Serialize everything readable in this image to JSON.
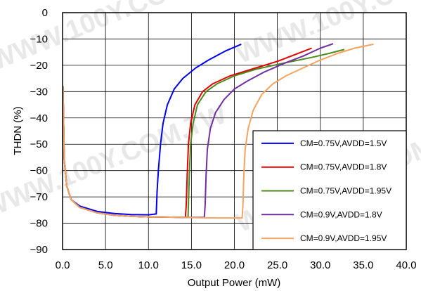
{
  "watermark": "WWW.100Y.COM.TW",
  "chart_data": {
    "type": "line",
    "title": "",
    "xlabel": "Output Power (mW)",
    "ylabel": "THDN (%)",
    "xlim": [
      0,
      40
    ],
    "ylim": [
      -90,
      0
    ],
    "x_ticks": [
      "0.0",
      "5.0",
      "10.0",
      "15.0",
      "20.0",
      "25.0",
      "30.0",
      "35.0",
      "40.0"
    ],
    "y_ticks": [
      "0",
      "−10",
      "−20",
      "−30",
      "−40",
      "−50",
      "−60",
      "−70",
      "−80",
      "−90"
    ],
    "grid": true,
    "legend_position": "bottom-right",
    "series": [
      {
        "name": "CM=0.75V,AVDD=1.5V",
        "color": "#0000ee",
        "points": [
          [
            0.05,
            -28
          ],
          [
            0.2,
            -56
          ],
          [
            0.5,
            -66
          ],
          [
            1,
            -71
          ],
          [
            2,
            -73.5
          ],
          [
            4,
            -75.5
          ],
          [
            6,
            -76.3
          ],
          [
            8,
            -76.7
          ],
          [
            10,
            -76.8
          ],
          [
            10.9,
            -76.5
          ],
          [
            11.0,
            -68
          ],
          [
            11.15,
            -60
          ],
          [
            11.4,
            -50
          ],
          [
            11.7,
            -42
          ],
          [
            12.2,
            -35
          ],
          [
            13,
            -29
          ],
          [
            14,
            -25
          ],
          [
            15.5,
            -21
          ],
          [
            17,
            -18
          ],
          [
            19,
            -14.5
          ],
          [
            20.8,
            -12
          ]
        ]
      },
      {
        "name": "CM=0.75V,AVDD=1.8V",
        "color": "#e00000",
        "points": [
          [
            0.05,
            -28
          ],
          [
            0.2,
            -56
          ],
          [
            0.5,
            -66
          ],
          [
            1,
            -71
          ],
          [
            2,
            -74
          ],
          [
            4,
            -76
          ],
          [
            6,
            -77
          ],
          [
            8,
            -77.4
          ],
          [
            10,
            -77.6
          ],
          [
            12,
            -77.7
          ],
          [
            14.3,
            -77.8
          ],
          [
            14.4,
            -73
          ],
          [
            14.5,
            -62
          ],
          [
            14.65,
            -50
          ],
          [
            14.9,
            -42
          ],
          [
            15.4,
            -35
          ],
          [
            16.3,
            -30
          ],
          [
            17.5,
            -27
          ],
          [
            19.5,
            -24
          ],
          [
            22,
            -21.5
          ],
          [
            25,
            -18.5
          ],
          [
            27,
            -16
          ],
          [
            29,
            -13.5
          ]
        ]
      },
      {
        "name": "CM=0.75V,AVDD=1.95V",
        "color": "#4f8a1f",
        "points": [
          [
            0.05,
            -28
          ],
          [
            0.2,
            -56
          ],
          [
            0.5,
            -66
          ],
          [
            1,
            -71
          ],
          [
            2,
            -74
          ],
          [
            4,
            -76
          ],
          [
            6,
            -77
          ],
          [
            8,
            -77.4
          ],
          [
            10,
            -77.6
          ],
          [
            12,
            -77.7
          ],
          [
            14.6,
            -77.8
          ],
          [
            14.65,
            -73
          ],
          [
            14.75,
            -62
          ],
          [
            14.9,
            -50
          ],
          [
            15.2,
            -42
          ],
          [
            15.7,
            -35
          ],
          [
            16.7,
            -30
          ],
          [
            18,
            -27
          ],
          [
            20,
            -24
          ],
          [
            22.5,
            -21.5
          ],
          [
            26,
            -19
          ],
          [
            29,
            -17
          ],
          [
            31,
            -15.5
          ],
          [
            32.8,
            -14
          ]
        ]
      },
      {
        "name": "CM=0.9V,AVDD=1.8V",
        "color": "#7030a0",
        "points": [
          [
            0.05,
            -28
          ],
          [
            0.2,
            -56
          ],
          [
            0.5,
            -66
          ],
          [
            1,
            -71
          ],
          [
            2,
            -74
          ],
          [
            4,
            -76
          ],
          [
            6,
            -77
          ],
          [
            8,
            -77.4
          ],
          [
            10,
            -77.6
          ],
          [
            12,
            -77.7
          ],
          [
            14,
            -77.8
          ],
          [
            16.5,
            -77.8
          ],
          [
            16.6,
            -73
          ],
          [
            16.7,
            -62
          ],
          [
            16.85,
            -52
          ],
          [
            17.2,
            -44
          ],
          [
            17.8,
            -38
          ],
          [
            18.8,
            -33
          ],
          [
            20,
            -29
          ],
          [
            21.5,
            -26
          ],
          [
            23.5,
            -22.5
          ],
          [
            26,
            -19
          ],
          [
            28,
            -16.5
          ],
          [
            30,
            -13.5
          ],
          [
            31.5,
            -11.8
          ]
        ]
      },
      {
        "name": "CM=0.9V,AVDD=1.95V",
        "color": "#f4a460",
        "points": [
          [
            0.05,
            -28
          ],
          [
            0.2,
            -56
          ],
          [
            0.5,
            -66
          ],
          [
            1,
            -71
          ],
          [
            2,
            -74
          ],
          [
            4,
            -76
          ],
          [
            6,
            -77
          ],
          [
            8,
            -77.4
          ],
          [
            10,
            -77.6
          ],
          [
            12,
            -77.7
          ],
          [
            14,
            -77.8
          ],
          [
            16,
            -77.9
          ],
          [
            18,
            -78
          ],
          [
            20.9,
            -78
          ],
          [
            21.0,
            -73
          ],
          [
            21.1,
            -62
          ],
          [
            21.25,
            -52
          ],
          [
            21.6,
            -44
          ],
          [
            22.2,
            -37
          ],
          [
            23.2,
            -31
          ],
          [
            24.5,
            -27
          ],
          [
            26,
            -24
          ],
          [
            28,
            -21
          ],
          [
            30,
            -18
          ],
          [
            32,
            -15.5
          ],
          [
            34,
            -13.5
          ],
          [
            36.2,
            -12
          ]
        ]
      }
    ]
  }
}
